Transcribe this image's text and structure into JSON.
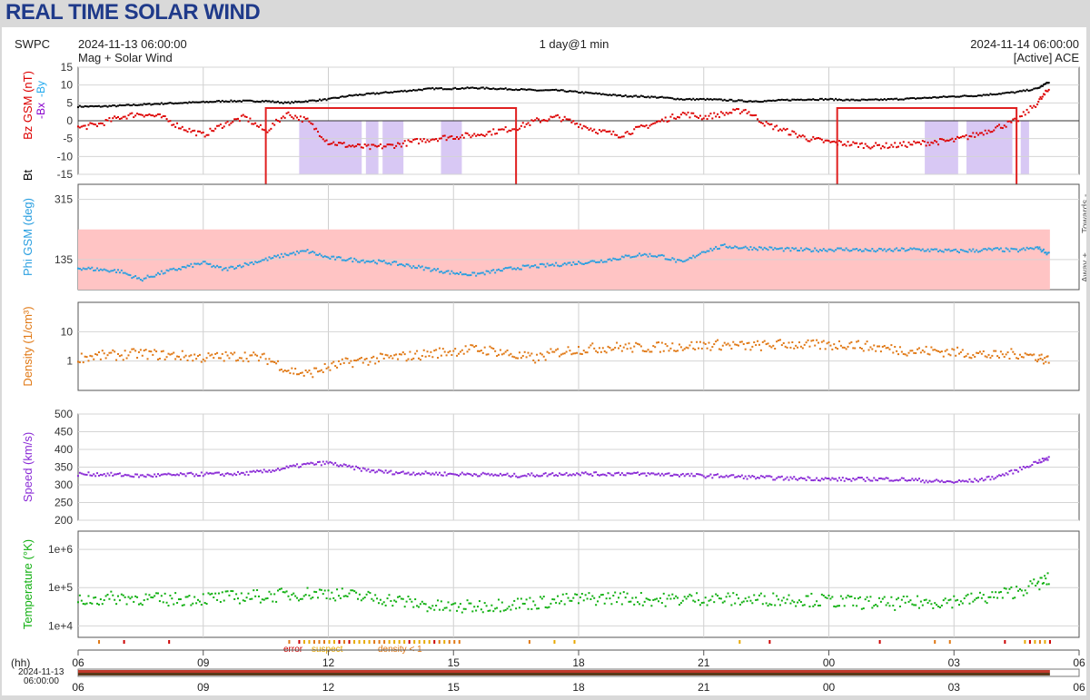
{
  "page_title": "REAL TIME SOLAR WIND",
  "header": {
    "agency": "SWPC",
    "start_time": "2024-11-13 06:00:00",
    "end_time": "2024-11-14 06:00:00",
    "subtitle_left": "Mag + Solar Wind",
    "range": "1 day@1 min",
    "source": "[Active] ACE"
  },
  "colors": {
    "bt": "#000000",
    "bz": "#dd0000",
    "bx": "#8800cc",
    "by": "#22aaee",
    "phi": "#2a9fe0",
    "phi_shade": "#ffc4c4",
    "density": "#e07814",
    "speed": "#8a2bd6",
    "temperature": "#11b011",
    "box": "#e02020",
    "bz_shade": "#d8c8f4"
  },
  "chart_data": [
    {
      "type": "line",
      "title": "",
      "ylabel_parts": [
        "Bt",
        "Bz GSM (nT)",
        "-Bx",
        "-By"
      ],
      "yticks": [
        15,
        10,
        5,
        0,
        -5,
        -10,
        -15
      ],
      "ylim": [
        -15,
        15
      ],
      "xlim": [
        0,
        24
      ],
      "series": [
        {
          "name": "Bt",
          "x": [
            0,
            0.5,
            1,
            1.5,
            2,
            2.5,
            3,
            3.5,
            4,
            4.5,
            5,
            5.5,
            6,
            6.5,
            7,
            7.5,
            8,
            8.5,
            9,
            9.5,
            10,
            10.5,
            11,
            11.5,
            12,
            12.5,
            13,
            13.5,
            14,
            14.5,
            15,
            15.5,
            16,
            16.5,
            17,
            17.5,
            18,
            18.5,
            19,
            19.5,
            20,
            20.5,
            21,
            21.5,
            22,
            22.5,
            23,
            23.3
          ],
          "y": [
            4,
            4,
            4.2,
            4.5,
            4.8,
            5,
            5.2,
            5.5,
            5.5,
            5.5,
            5,
            5.5,
            6,
            7,
            7.5,
            8,
            8.5,
            9,
            9,
            9.2,
            9,
            8.8,
            8.5,
            8.5,
            8,
            7.5,
            7,
            6.8,
            6.5,
            6,
            6,
            5.8,
            5.5,
            5.5,
            5.8,
            6,
            6,
            5.8,
            5.8,
            6,
            6.2,
            6.5,
            6.8,
            7,
            7.5,
            8,
            9,
            11
          ]
        },
        {
          "name": "Bz GSM",
          "x": [
            0,
            0.5,
            1,
            1.5,
            2,
            2.5,
            3,
            3.5,
            4,
            4.5,
            5,
            5.5,
            6,
            6.5,
            7,
            7.5,
            8,
            8.5,
            9,
            9.5,
            10,
            10.5,
            11,
            11.5,
            12,
            12.5,
            13,
            13.5,
            14,
            14.5,
            15,
            15.5,
            16,
            16.5,
            17,
            17.5,
            18,
            18.5,
            19,
            19.5,
            20,
            20.5,
            21,
            21.5,
            22,
            22.5,
            23,
            23.3
          ],
          "y": [
            -2,
            -1,
            1,
            2,
            1,
            -2,
            -4,
            -1,
            1,
            -3,
            2,
            0,
            -6,
            -7,
            -7.5,
            -7,
            -6,
            -5,
            -4.5,
            -4,
            -3,
            -2,
            0,
            1,
            -1,
            -3,
            -4,
            -2,
            0,
            2,
            1,
            2,
            3,
            -1,
            -3,
            -5,
            -6,
            -6.5,
            -7,
            -7,
            -6.5,
            -6,
            -5.5,
            -4,
            -2,
            0,
            5,
            9
          ]
        }
      ],
      "shaded_spans": [
        [
          5.3,
          6.8
        ],
        [
          6.9,
          7.2
        ],
        [
          7.3,
          7.8
        ],
        [
          8.7,
          9.2
        ],
        [
          20.3,
          21.1
        ],
        [
          21.3,
          22.4
        ],
        [
          22.6,
          22.8
        ]
      ],
      "highlight_boxes": [
        [
          4.5,
          10.5
        ],
        [
          18.2,
          22.5
        ]
      ]
    },
    {
      "type": "scatter",
      "title": "",
      "ylabel": "Phi GSM (deg)",
      "yticks": [
        315,
        135
      ],
      "ylim": [
        45,
        360
      ],
      "right_labels": [
        "Away +",
        "Towards -"
      ],
      "shaded_range": [
        45,
        225
      ],
      "series": [
        {
          "name": "Phi GSM",
          "x": [
            0,
            0.5,
            1,
            1.5,
            2,
            2.5,
            3,
            3.5,
            4,
            4.5,
            5,
            5.5,
            6,
            6.5,
            7,
            7.5,
            8,
            8.5,
            9,
            9.5,
            10,
            10.5,
            11,
            11.5,
            12,
            12.5,
            13,
            13.5,
            14,
            14.5,
            15,
            15.5,
            16,
            16.5,
            17,
            17.5,
            18,
            18.5,
            19,
            19.5,
            20,
            20.5,
            21,
            21.5,
            22,
            22.5,
            23,
            23.3
          ],
          "y": [
            110,
            105,
            100,
            75,
            95,
            110,
            125,
            105,
            120,
            135,
            150,
            160,
            140,
            135,
            130,
            125,
            115,
            105,
            95,
            90,
            100,
            110,
            115,
            120,
            125,
            130,
            140,
            150,
            145,
            125,
            160,
            175,
            170,
            168,
            165,
            163,
            165,
            165,
            162,
            163,
            165,
            163,
            160,
            162,
            165,
            162,
            170,
            150
          ]
        }
      ]
    },
    {
      "type": "scatter",
      "title": "",
      "ylabel": "Density (1/cm³)",
      "scale": "log",
      "yticks": [
        10,
        1
      ],
      "ylim": [
        0.1,
        100
      ],
      "series": [
        {
          "name": "Density",
          "x": [
            0,
            0.5,
            1,
            1.5,
            2,
            2.5,
            3,
            3.5,
            4,
            4.5,
            5,
            5.5,
            6,
            6.5,
            7,
            7.5,
            8,
            8.5,
            9,
            9.5,
            10,
            10.5,
            11,
            11.5,
            12,
            12.5,
            13,
            13.5,
            14,
            14.5,
            15,
            15.5,
            16,
            16.5,
            17,
            17.5,
            18,
            18.5,
            19,
            19.5,
            20,
            20.5,
            21,
            21.5,
            22,
            22.5,
            23,
            23.3
          ],
          "y": [
            1.3,
            1.5,
            1.6,
            1.8,
            1.6,
            1.5,
            1.3,
            1.4,
            1.5,
            1.2,
            0.5,
            0.35,
            0.6,
            0.9,
            1.1,
            1.3,
            1.5,
            1.8,
            2.2,
            2.5,
            2.2,
            1.5,
            1.2,
            2,
            2.5,
            2.8,
            3,
            2.8,
            3,
            3.2,
            3.4,
            3.6,
            3.2,
            3.4,
            3.8,
            3.5,
            3.4,
            3.8,
            3,
            2.6,
            2.2,
            2.2,
            2,
            1.8,
            1.5,
            1.8,
            1.4,
            1.0
          ]
        }
      ]
    },
    {
      "type": "scatter",
      "title": "",
      "ylabel": "Speed (km/s)",
      "yticks": [
        500,
        450,
        400,
        350,
        300,
        250,
        200
      ],
      "ylim": [
        200,
        500
      ],
      "series": [
        {
          "name": "Speed",
          "x": [
            0,
            0.5,
            1,
            1.5,
            2,
            2.5,
            3,
            3.5,
            4,
            4.5,
            5,
            5.5,
            6,
            6.5,
            7,
            7.5,
            8,
            8.5,
            9,
            9.5,
            10,
            10.5,
            11,
            11.5,
            12,
            12.5,
            13,
            13.5,
            14,
            14.5,
            15,
            15.5,
            16,
            16.5,
            17,
            17.5,
            18,
            18.5,
            19,
            19.5,
            20,
            20.5,
            21,
            21.5,
            22,
            22.5,
            23,
            23.3
          ],
          "y": [
            330,
            330,
            328,
            325,
            327,
            328,
            330,
            330,
            332,
            338,
            348,
            358,
            362,
            350,
            340,
            335,
            333,
            332,
            330,
            330,
            328,
            326,
            328,
            330,
            332,
            330,
            332,
            330,
            330,
            328,
            325,
            325,
            322,
            320,
            318,
            318,
            316,
            315,
            316,
            316,
            314,
            310,
            308,
            312,
            322,
            340,
            365,
            375
          ]
        }
      ]
    },
    {
      "type": "scatter",
      "title": "",
      "ylabel": "Temperature (°K)",
      "scale": "log",
      "yticks": [
        "1e+6",
        "1e+5",
        "1e+4"
      ],
      "ylim": [
        5000,
        3000000
      ],
      "series": [
        {
          "name": "Temperature",
          "x": [
            0,
            0.5,
            1,
            1.5,
            2,
            2.5,
            3,
            3.5,
            4,
            4.5,
            5,
            5.5,
            6,
            6.5,
            7,
            7.5,
            8,
            8.5,
            9,
            9.5,
            10,
            10.5,
            11,
            11.5,
            12,
            12.5,
            13,
            13.5,
            14,
            14.5,
            15,
            15.5,
            16,
            16.5,
            17,
            17.5,
            18,
            18.5,
            19,
            19.5,
            20,
            20.5,
            21,
            21.5,
            22,
            22.5,
            23,
            23.3
          ],
          "y": [
            45000,
            50000,
            55000,
            52000,
            48000,
            50000,
            52000,
            55000,
            58000,
            60000,
            65000,
            70000,
            72000,
            62000,
            55000,
            48000,
            40000,
            32000,
            30000,
            32000,
            35000,
            38000,
            40000,
            45000,
            50000,
            52000,
            55000,
            50000,
            48000,
            50000,
            52000,
            50000,
            48000,
            50000,
            50000,
            48000,
            45000,
            42000,
            40000,
            38000,
            40000,
            42000,
            45000,
            50000,
            60000,
            80000,
            120000,
            170000
          ]
        }
      ]
    }
  ],
  "flags": {
    "labels": [
      "error",
      "suspect",
      "density < 1"
    ],
    "label_colors": [
      "#cc0000",
      "#e8a800",
      "#e07814"
    ]
  },
  "xaxis": {
    "unit_label": "(hh)",
    "ticks": [
      "06",
      "09",
      "12",
      "15",
      "18",
      "21",
      "00",
      "03",
      "06"
    ],
    "tick_hours": [
      0,
      3,
      6,
      9,
      12,
      15,
      18,
      21,
      24
    ],
    "timeline_date": "2024-11-13",
    "timeline_time": "06:00:00",
    "timeline_extent": [
      0,
      23.3
    ]
  }
}
